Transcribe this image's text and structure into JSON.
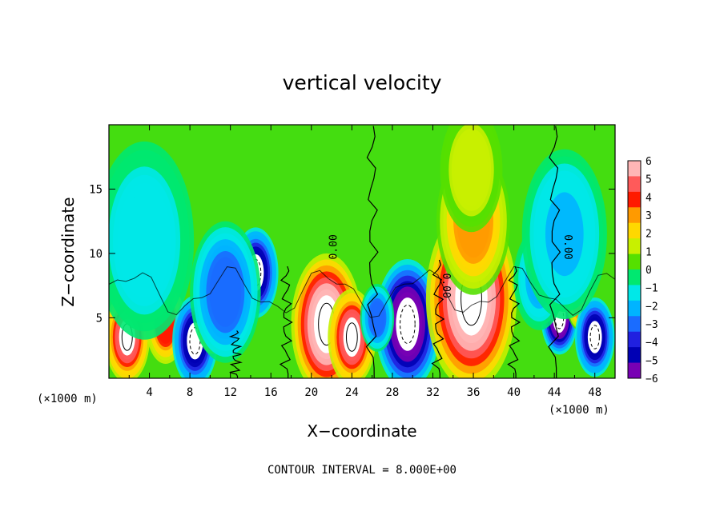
{
  "chart_data": {
    "type": "heatmap",
    "title": "vertical velocity",
    "xlabel": "X−coordinate",
    "ylabel": "Z−coordinate",
    "x_unit_left": "(×1000 m)",
    "x_unit_right": "(×1000 m)",
    "xlim": [
      0,
      50
    ],
    "ylim": [
      0.3,
      20
    ],
    "x_ticks": [
      "4",
      "8",
      "12",
      "16",
      "20",
      "24",
      "28",
      "32",
      "36",
      "40",
      "44",
      "48"
    ],
    "y_ticks": [
      "5",
      "10",
      "15"
    ],
    "colorbar": {
      "range": [
        -6,
        6
      ],
      "ticks": [
        "6",
        "5",
        "4",
        "3",
        "2",
        "1",
        "0",
        "−1",
        "−2",
        "−3",
        "−4",
        "−5",
        "−6"
      ],
      "colors": [
        "#ffb6b6",
        "#ff5a5a",
        "#ff1a00",
        "#ff9a00",
        "#ffd800",
        "#c8f000",
        "#55e000",
        "#00e870",
        "#00e8e8",
        "#00b4ff",
        "#1a6cff",
        "#2020e0",
        "#0000b4",
        "#7800b4"
      ]
    },
    "contour_label": "0.00",
    "annotation": "CONTOUR INTERVAL = 8.000E+00",
    "cells": [
      {
        "x": 1.8,
        "z": 3.5,
        "w": 5,
        "r": 1.6
      },
      {
        "x": 5.6,
        "z": 4.5,
        "w": 4,
        "r": 1.4
      },
      {
        "x": 8.5,
        "z": 3.2,
        "w": -5,
        "r": 1.6
      },
      {
        "x": 10.2,
        "z": 4.4,
        "w": 4,
        "r": 1.0
      },
      {
        "x": 14.5,
        "z": 8.5,
        "w": -5,
        "r": 1.6
      },
      {
        "x": 11.5,
        "z": 7.0,
        "w": -3,
        "r": 2.5
      },
      {
        "x": 21.5,
        "z": 4.5,
        "w": 6,
        "r": 2.5
      },
      {
        "x": 24.0,
        "z": 3.5,
        "w": 5,
        "r": 1.7
      },
      {
        "x": 29.5,
        "z": 4.5,
        "w": -6,
        "r": 2.3
      },
      {
        "x": 35.8,
        "z": 6.5,
        "w": 6,
        "r": 3.2
      },
      {
        "x": 36.0,
        "z": 12.5,
        "w": 3,
        "r": 2.6
      },
      {
        "x": 35.8,
        "z": 16.5,
        "w": 1.5,
        "r": 2.2
      },
      {
        "x": 44.5,
        "z": 5.0,
        "w": -6,
        "r": 1.3
      },
      {
        "x": 46.5,
        "z": 6.0,
        "w": 3,
        "r": 0.9
      },
      {
        "x": 48.0,
        "z": 3.5,
        "w": -5,
        "r": 1.4
      },
      {
        "x": 42.5,
        "z": 8.0,
        "w": -2,
        "r": 1.8
      },
      {
        "x": 3.5,
        "z": 11.0,
        "w": -1.5,
        "r": 3.5
      },
      {
        "x": 45.0,
        "z": 11.5,
        "w": -1.8,
        "r": 3.0
      },
      {
        "x": 26.5,
        "z": 5.0,
        "w": -3,
        "r": 1.2
      }
    ]
  }
}
